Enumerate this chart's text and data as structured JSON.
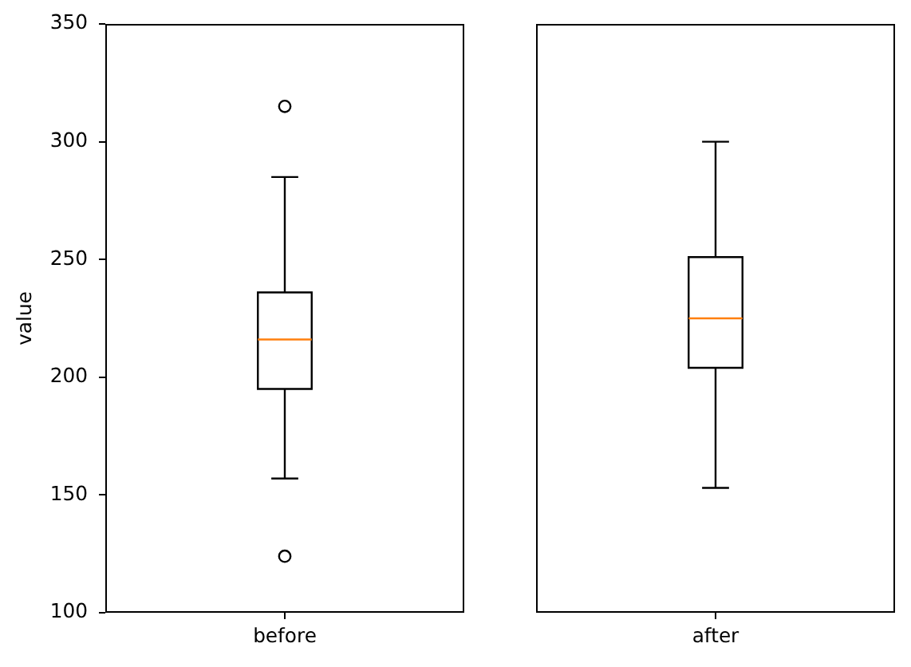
{
  "chart_data": [
    {
      "type": "box",
      "categories": [
        "before"
      ],
      "color": "#000000",
      "ylabel": "value",
      "ylim": [
        100,
        350
      ],
      "yticks": [
        100,
        150,
        200,
        250,
        300,
        350
      ],
      "boxes": [
        {
          "low": 157,
          "q1": 195,
          "median": 216,
          "q3": 236,
          "high": 285,
          "outliers": [
            124,
            315
          ]
        }
      ]
    },
    {
      "type": "box",
      "categories": [
        "after"
      ],
      "color": "#000000",
      "ylim": [
        100,
        350
      ],
      "tick_labels": "x",
      "boxes": [
        {
          "low": 153,
          "q1": 204,
          "median": 225,
          "q3": 251,
          "high": 300
        }
      ]
    }
  ]
}
